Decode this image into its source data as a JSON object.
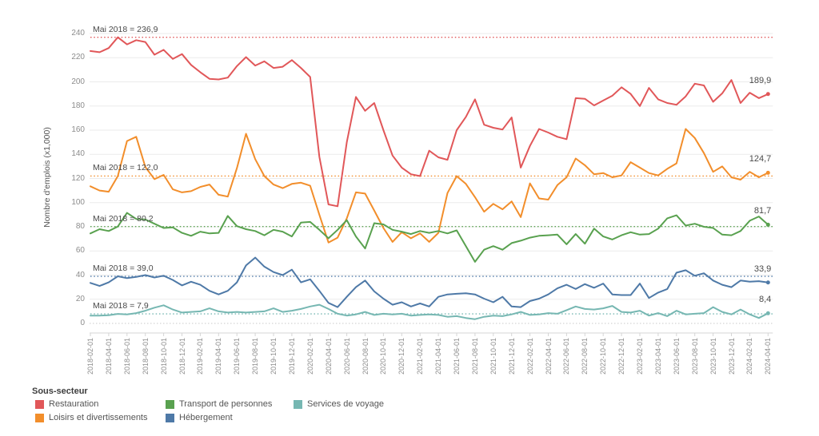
{
  "chart_data": {
    "type": "line",
    "title": "",
    "ylabel": "Nombre d'emplois (x1,000)",
    "ylim": [
      0,
      240
    ],
    "ytick_step": 20,
    "grid": "horizontal",
    "x_start": "2018-02",
    "x_end": "2024-04",
    "x_frequency": "monthly",
    "x_tick_labels": [
      "2018-02-01",
      "2018-04-01",
      "2018-06-01",
      "2018-08-01",
      "2018-10-01",
      "2018-12-01",
      "2019-02-01",
      "2019-04-01",
      "2019-06-01",
      "2019-08-01",
      "2019-10-01",
      "2019-12-01",
      "2020-02-01",
      "2020-04-01",
      "2020-06-01",
      "2020-08-01",
      "2020-10-01",
      "2020-12-01",
      "2021-02-01",
      "2021-04-01",
      "2021-06-01",
      "2021-08-01",
      "2021-10-01",
      "2021-12-01",
      "2022-02-01",
      "2022-04-01",
      "2022-06-01",
      "2022-08-01",
      "2022-10-01",
      "2022-12-01",
      "2023-02-01",
      "2023-04-01",
      "2023-06-01",
      "2023-08-01",
      "2023-10-01",
      "2023-12-01",
      "2024-02-01",
      "2024-04-01"
    ],
    "legend_title": "Sous-secteur",
    "legend_position": "bottom-left",
    "series": [
      {
        "name": "Restauration",
        "slug": "restauration",
        "color": "#e15759",
        "ref_label": "Mai 2018 = 236,9",
        "ref_value": 236.9,
        "end_label": "189,9",
        "end_value": 189.9,
        "values": [
          225.5,
          224.5,
          228,
          236.9,
          231,
          234.5,
          233,
          222.5,
          226.5,
          219,
          223,
          214,
          208,
          202.5,
          202,
          203.5,
          213,
          220.5,
          213.5,
          217,
          211.5,
          212.5,
          218,
          211.5,
          204,
          138,
          98.5,
          97,
          150,
          187.5,
          176,
          182.5,
          160,
          139,
          129,
          123.5,
          122,
          143,
          137.5,
          135.5,
          160,
          171,
          185.5,
          164.5,
          162,
          160.5,
          170.5,
          129,
          147,
          161,
          158,
          154.5,
          152.5,
          186.5,
          186,
          180.5,
          184.5,
          188.5,
          195.5,
          190,
          180,
          195,
          185.5,
          182.5,
          181,
          188,
          198.5,
          197,
          183.5,
          190.5,
          201.5,
          182.5,
          191,
          186.5,
          189.9
        ]
      },
      {
        "name": "Loisirs et divertissements",
        "slug": "loisirs-et-divertissements",
        "color": "#f28e2b",
        "ref_label": "Mai 2018 = 122,0",
        "ref_value": 122.0,
        "end_label": "124,7",
        "end_value": 124.7,
        "values": [
          113.5,
          110,
          109,
          122,
          151,
          154.5,
          129.5,
          119.5,
          123,
          111,
          108.5,
          109.5,
          113,
          115,
          106.5,
          105,
          128.5,
          157,
          136,
          122,
          115,
          112,
          115.5,
          116.5,
          114,
          90,
          67,
          71,
          87,
          108.5,
          107.5,
          93.5,
          79,
          67.5,
          75.5,
          70.5,
          74.5,
          67.5,
          75,
          108,
          122,
          115.5,
          104.5,
          92.5,
          99,
          94.5,
          101,
          88,
          116,
          103.5,
          102.5,
          114.5,
          121,
          136.5,
          131,
          123.5,
          124.5,
          121,
          122.5,
          133.5,
          129,
          124.5,
          122.5,
          128,
          132.5,
          161,
          153.5,
          141,
          125.5,
          130,
          121,
          119,
          125.5,
          121,
          124.7
        ]
      },
      {
        "name": "Transport de personnes",
        "slug": "transport-de-personnes",
        "color": "#59a14f",
        "ref_label": "Mai 2018 = 80,2",
        "ref_value": 80.2,
        "end_label": "81,7",
        "end_value": 81.7,
        "values": [
          74.5,
          78,
          76.5,
          80.2,
          91.5,
          86.5,
          86,
          82.5,
          79,
          79.5,
          75,
          72.5,
          76,
          74.5,
          75,
          89,
          80.5,
          78,
          76.5,
          73,
          77.5,
          76,
          72,
          83.5,
          84,
          77.5,
          70.5,
          77.5,
          85.5,
          72,
          62,
          83,
          82,
          77.5,
          76,
          74,
          76.5,
          75,
          76.5,
          74.5,
          77,
          64,
          51,
          61,
          64,
          61,
          66.5,
          68.5,
          71,
          72.5,
          73,
          73.5,
          65.5,
          74,
          66,
          78.5,
          72,
          69.5,
          73,
          75.5,
          73.5,
          74,
          78.5,
          87,
          89.5,
          81,
          82.5,
          80,
          79,
          73.5,
          73,
          76.5,
          85,
          88.5,
          81.7
        ]
      },
      {
        "name": "Hébergement",
        "slug": "hebergement",
        "color": "#4e79a7",
        "ref_label": "Mai 2018 = 39,0",
        "ref_value": 39.0,
        "end_label": "33,9",
        "end_value": 33.9,
        "values": [
          33.5,
          31,
          34,
          39,
          37.5,
          38.5,
          40,
          38,
          39.5,
          36,
          31.5,
          34.5,
          32,
          27,
          24,
          27,
          34,
          48,
          54.5,
          47,
          42.5,
          40,
          44.5,
          34,
          36.5,
          27,
          17,
          13.5,
          22,
          30,
          35.5,
          26.5,
          20.5,
          15.5,
          17.5,
          14,
          16.5,
          14,
          22,
          24,
          24.5,
          25,
          24,
          20.5,
          17.5,
          22,
          14,
          13.5,
          18.5,
          20.5,
          24,
          29,
          32,
          28.5,
          32.5,
          29.5,
          33,
          24,
          23.5,
          23.5,
          33,
          21,
          25.5,
          28.5,
          42,
          44,
          39.5,
          41.5,
          35.5,
          32,
          30,
          35.5,
          34.5,
          35,
          33.9
        ]
      },
      {
        "name": "Services de voyage",
        "slug": "services-de-voyage",
        "color": "#76b7b2",
        "ref_label": "Mai 2018 = 7,9",
        "ref_value": 7.9,
        "end_label": "8,4",
        "end_value": 8.4,
        "values": [
          6.5,
          6.5,
          6.8,
          7.9,
          7.5,
          8.5,
          10.5,
          13,
          15,
          11.5,
          9,
          9.5,
          10,
          12.5,
          10,
          9,
          9.5,
          9,
          9.5,
          10,
          12.5,
          9.5,
          10.5,
          12,
          14,
          15.5,
          12,
          8,
          6.5,
          7.5,
          9.5,
          7,
          8,
          7.5,
          8,
          6.5,
          7,
          7.5,
          7,
          5.5,
          6,
          4.5,
          3.5,
          5.5,
          6.5,
          6,
          7.5,
          9.5,
          7,
          7.5,
          8.5,
          8,
          11,
          14,
          12,
          11.5,
          12.5,
          14.5,
          9.5,
          9,
          10.5,
          6.5,
          8.5,
          6,
          10.5,
          7.5,
          8,
          8.5,
          13.5,
          9.5,
          7.5,
          11.5,
          7.5,
          4.5,
          8.4
        ]
      }
    ],
    "legend_rows": [
      [
        0,
        2,
        4
      ],
      [
        1,
        3
      ]
    ],
    "legend_col_x": [
      44,
      207,
      367
    ]
  }
}
